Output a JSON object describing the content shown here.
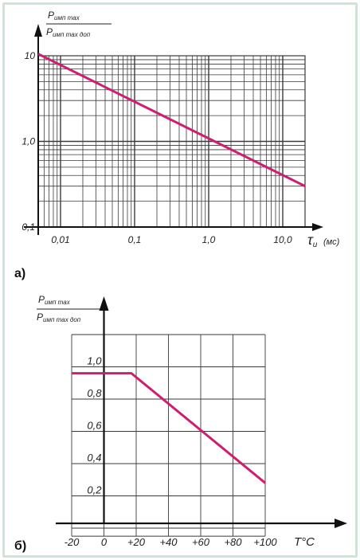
{
  "colors": {
    "curve": "#cc1f70",
    "grid": "#3a3a3a",
    "axis": "#111111",
    "frame": "#cfe3d6"
  },
  "chart_data": [
    {
      "type": "line",
      "panel_label": "а)",
      "ylabel_num": "P_имп max",
      "ylabel_den": "P_имп max доп",
      "xlabel": "τ",
      "xlabel_sub": "и",
      "xunit": "(мс)",
      "xscale": "log",
      "yscale": "log",
      "xlim": [
        0.005,
        20
      ],
      "ylim": [
        0.1,
        10
      ],
      "grid": true,
      "x_ticks": [
        "0,01",
        "0,1",
        "1,0",
        "10,0"
      ],
      "y_ticks": [
        "10",
        "1,0",
        "0,1"
      ],
      "series": [
        {
          "x": [
            0.005,
            20
          ],
          "y": [
            10.5,
            0.3
          ]
        }
      ]
    },
    {
      "type": "line",
      "panel_label": "б)",
      "ylabel_num": "P_имп max",
      "ylabel_den": "P_имп max доп",
      "xlabel": "T°C",
      "xlim": [
        -20,
        100
      ],
      "ylim": [
        0,
        1.2
      ],
      "grid": true,
      "x_ticks": [
        "-20",
        "0",
        "+20",
        "+40",
        "+60",
        "+80",
        "+100"
      ],
      "y_ticks": [
        "1,0",
        "0,8",
        "0,6",
        "0,4",
        "0,2"
      ],
      "series": [
        {
          "x": [
            -20,
            17,
            100
          ],
          "y": [
            0.96,
            0.96,
            0.28
          ]
        }
      ]
    }
  ]
}
